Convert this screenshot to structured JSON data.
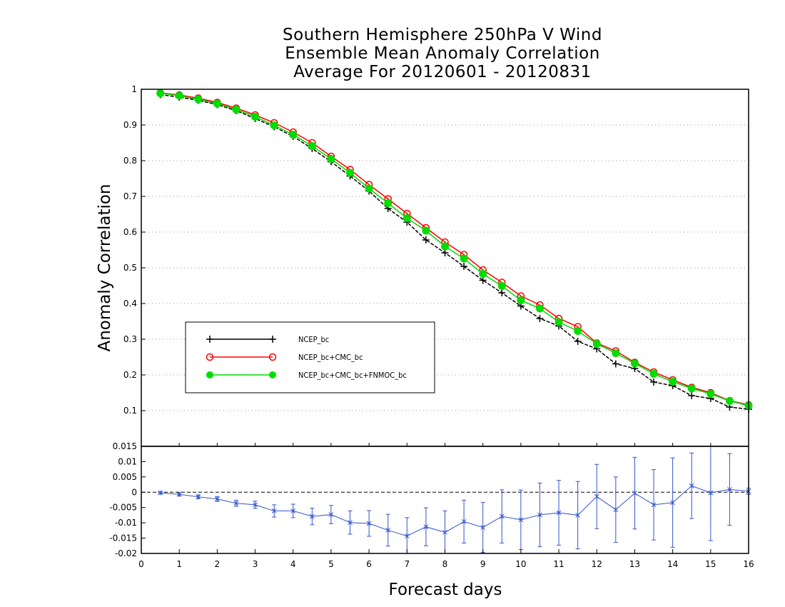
{
  "title_lines": [
    "Southern Hemisphere 250hPa V Wind",
    "Ensemble Mean Anomaly Correlation",
    "Average For 20120601 - 20120831"
  ],
  "chart_data": [
    {
      "type": "line",
      "title": "Southern Hemisphere 250hPa V Wind Ensemble Mean Anomaly Correlation Average For 20120601 - 20120831",
      "xlabel": "Forecast days",
      "ylabel": "Anomaly Correlation",
      "xlim": [
        0,
        16
      ],
      "ylim": [
        0,
        1
      ],
      "x_ticks": [
        "0",
        "1",
        "2",
        "3",
        "4",
        "5",
        "6",
        "7",
        "8",
        "9",
        "10",
        "11",
        "12",
        "13",
        "14",
        "15",
        "16"
      ],
      "y_ticks": [
        "0.1",
        "0.2",
        "0.3",
        "0.4",
        "0.5",
        "0.6",
        "0.7",
        "0.8",
        "0.9",
        "1"
      ],
      "grid": true,
      "legend_position": "lower-left",
      "x": [
        0.5,
        1,
        1.5,
        2,
        2.5,
        3,
        3.5,
        4,
        4.5,
        5,
        5.5,
        6,
        6.5,
        7,
        7.5,
        8,
        8.5,
        9,
        9.5,
        10,
        10.5,
        11,
        11.5,
        12,
        12.5,
        13,
        13.5,
        14,
        14.5,
        15,
        15.5,
        16
      ],
      "series": [
        {
          "name": "NCEP_bc",
          "color": "#000000",
          "marker": "plus",
          "values": [
            0.985,
            0.978,
            0.969,
            0.957,
            0.94,
            0.918,
            0.895,
            0.868,
            0.834,
            0.797,
            0.757,
            0.715,
            0.666,
            0.628,
            0.578,
            0.542,
            0.504,
            0.465,
            0.43,
            0.393,
            0.358,
            0.337,
            0.294,
            0.273,
            0.231,
            0.218,
            0.18,
            0.17,
            0.142,
            0.134,
            0.11,
            0.104
          ]
        },
        {
          "name": "NCEP_bc+CMC_bc",
          "color": "#ff0000",
          "marker": "circle",
          "values": [
            0.99,
            0.984,
            0.975,
            0.963,
            0.947,
            0.928,
            0.906,
            0.88,
            0.85,
            0.812,
            0.775,
            0.733,
            0.693,
            0.652,
            0.612,
            0.572,
            0.537,
            0.494,
            0.459,
            0.421,
            0.396,
            0.358,
            0.335,
            0.289,
            0.267,
            0.235,
            0.208,
            0.186,
            0.165,
            0.15,
            0.128,
            0.116
          ]
        },
        {
          "name": "NCEP_bc+CMC_bc+FNMOC_bc",
          "color": "#00dd00",
          "marker": "filled-circle",
          "values": [
            0.989,
            0.982,
            0.972,
            0.96,
            0.943,
            0.923,
            0.899,
            0.873,
            0.841,
            0.805,
            0.766,
            0.722,
            0.681,
            0.639,
            0.604,
            0.56,
            0.526,
            0.483,
            0.449,
            0.409,
            0.386,
            0.348,
            0.323,
            0.287,
            0.261,
            0.232,
            0.203,
            0.181,
            0.162,
            0.147,
            0.127,
            0.114
          ]
        }
      ]
    },
    {
      "type": "line",
      "xlabel": "Forecast days",
      "ylabel": "",
      "xlim": [
        0,
        16
      ],
      "ylim": [
        -0.02,
        0.015
      ],
      "y_ticks": [
        "-0.02",
        "-0.015",
        "-0.01",
        "-0.005",
        "0",
        "0.005",
        "0.01",
        "0.015"
      ],
      "x": [
        0.5,
        1,
        1.5,
        2,
        2.5,
        3,
        3.5,
        4,
        4.5,
        5,
        5.5,
        6,
        6.5,
        7,
        7.5,
        8,
        8.5,
        9,
        9.5,
        10,
        10.5,
        11,
        11.5,
        12,
        12.5,
        13,
        13.5,
        14,
        14.5,
        15,
        15.5,
        16
      ],
      "series": [
        {
          "name": "",
          "color": "#3355cc",
          "marker": "star-errorbar",
          "values": [
            -0.0002,
            -0.0007,
            -0.0015,
            -0.0022,
            -0.0036,
            -0.0041,
            -0.0061,
            -0.0061,
            -0.0079,
            -0.0073,
            -0.0099,
            -0.0102,
            -0.0124,
            -0.0143,
            -0.0113,
            -0.0131,
            -0.0096,
            -0.0115,
            -0.0079,
            -0.009,
            -0.0074,
            -0.0067,
            -0.0075,
            -0.0014,
            -0.0057,
            -0.0003,
            -0.0041,
            -0.0034,
            0.0021,
            -0.0002,
            0.0009,
            0.0003
          ],
          "error": [
            0.0003,
            0.0005,
            0.0006,
            0.0008,
            0.001,
            0.0012,
            0.002,
            0.0022,
            0.0027,
            0.003,
            0.0038,
            0.0042,
            0.0052,
            0.006,
            0.0062,
            0.007,
            0.007,
            0.0082,
            0.0087,
            0.0097,
            0.0104,
            0.0106,
            0.011,
            0.0105,
            0.0107,
            0.0117,
            0.0115,
            0.0146,
            0.0107,
            0.0156,
            0.0117,
            0.001
          ]
        }
      ]
    }
  ]
}
